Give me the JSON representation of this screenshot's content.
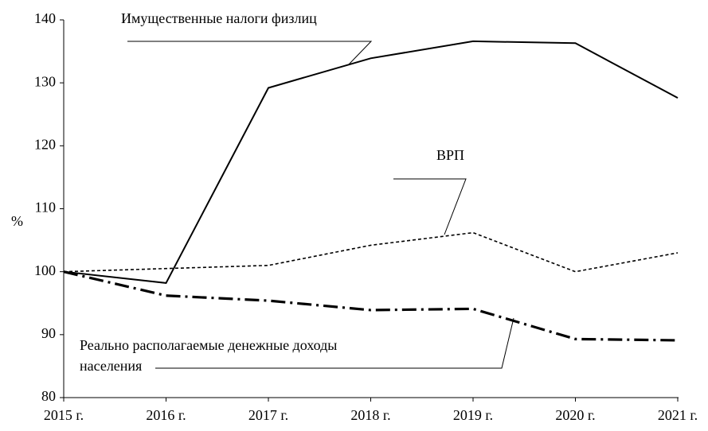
{
  "chart_data": {
    "type": "line",
    "y_label": "%",
    "categories": [
      "2015 г.",
      "2016 г.",
      "2017 г.",
      "2018 г.",
      "2019 г.",
      "2020 г.",
      "2021 г."
    ],
    "series": [
      {
        "name": "Имущественные налоги физлиц",
        "color": "#000000",
        "dash": "solid",
        "width": 2,
        "values": [
          100,
          98.2,
          129.2,
          133.9,
          136.6,
          136.3,
          127.6
        ]
      },
      {
        "name": "ВРП",
        "color": "#000000",
        "dash": "short",
        "width": 1.6,
        "values": [
          100,
          100.5,
          101.0,
          104.2,
          106.2,
          100.0,
          103.0
        ]
      },
      {
        "name": "Реально располагаемые денежные доходы населения",
        "color": "#000000",
        "dash": "dashdot",
        "width": 3.2,
        "values": [
          100,
          96.2,
          95.4,
          93.9,
          94.1,
          89.3,
          89.1
        ]
      }
    ],
    "annotations": [
      {
        "lines": [
          "Имущественные налоги физлиц"
        ]
      },
      {
        "lines": [
          "ВРП"
        ]
      },
      {
        "lines": [
          "Реально располагаемые денежные доходы",
          "населения"
        ]
      }
    ],
    "ylim": [
      80,
      140
    ],
    "yticks": [
      80,
      90,
      100,
      110,
      120,
      130,
      140
    ],
    "grid": false
  }
}
